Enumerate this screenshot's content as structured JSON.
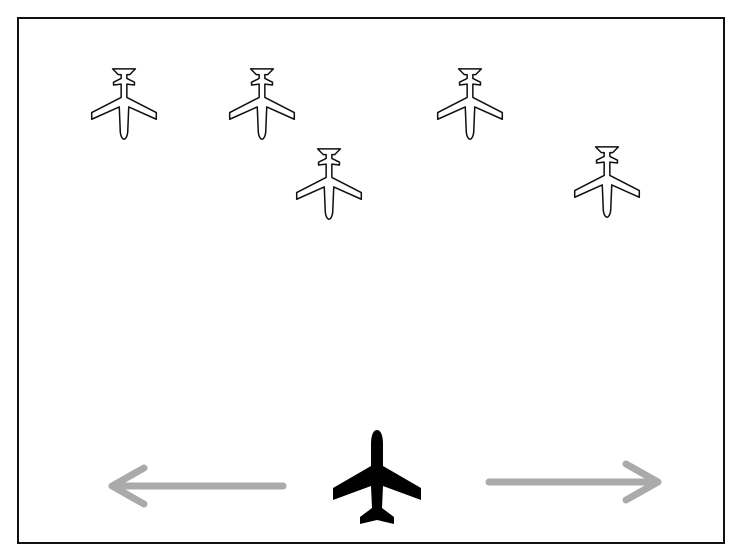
{
  "game": {
    "background": "#ffffff",
    "frame_color": "#111111",
    "enemy_icon": "airplane-outline-icon",
    "enemy_fill": "#ffffff",
    "enemy_stroke": "#111111",
    "enemy_count": 5,
    "player_icon": "airplane-solid-icon",
    "player_color": "#000000",
    "controls": {
      "left_icon": "arrow-left-icon",
      "right_icon": "arrow-right-icon",
      "arrow_color": "#aaaaaa"
    }
  }
}
